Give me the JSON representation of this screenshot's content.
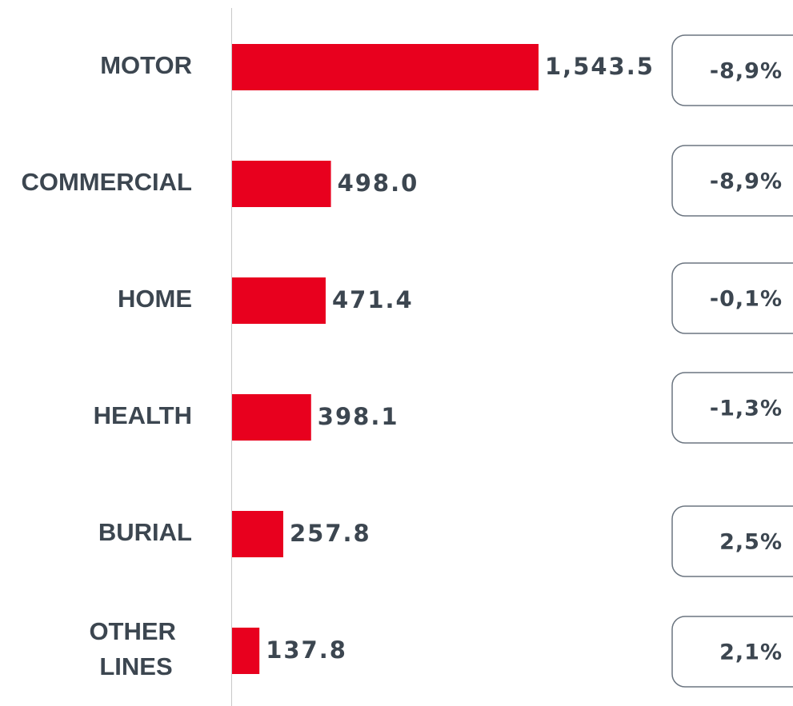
{
  "chart_data": {
    "type": "hbar",
    "categories": [
      "MOTOR",
      "COMMERCIAL",
      "HOME",
      "HEALTH",
      "BURIAL",
      "OTHER LINES"
    ],
    "values": [
      1543.5,
      498.0,
      471.4,
      398.1,
      257.8,
      137.8
    ],
    "value_labels": [
      "1,543.5",
      "498.0",
      "471.4",
      "398.1",
      "257.8",
      "137.8"
    ],
    "color": "#e8001e",
    "changes": [
      "-8,9%",
      "-8,9%",
      "-0,1%",
      "-1,3%",
      "2,5%",
      "2,1%"
    ]
  }
}
